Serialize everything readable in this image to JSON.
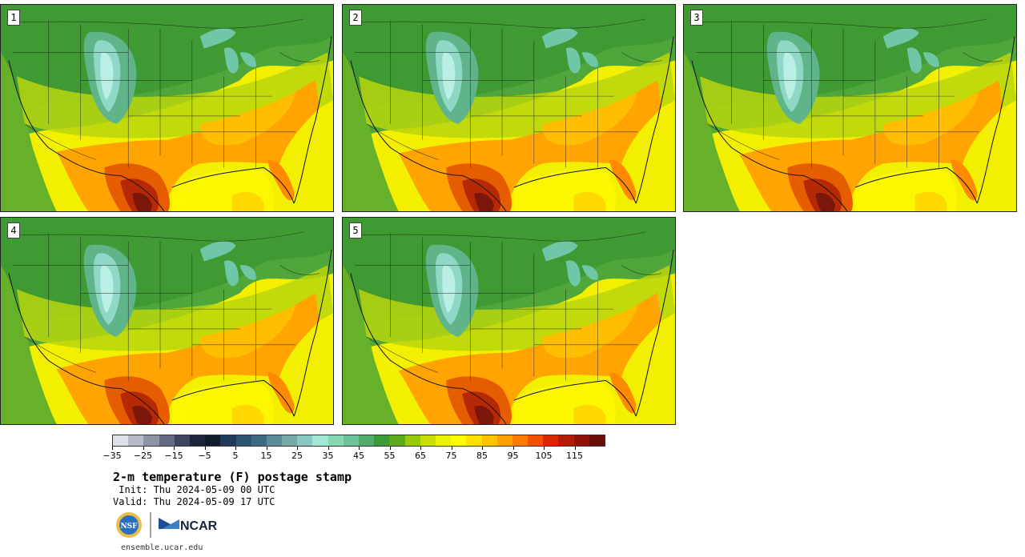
{
  "panels": [
    {
      "label": "1"
    },
    {
      "label": "2"
    },
    {
      "label": "3"
    },
    {
      "label": "4"
    },
    {
      "label": "5"
    }
  ],
  "colorbar": {
    "colors": [
      "#dfe1ea",
      "#b7bac9",
      "#8d93a8",
      "#636a85",
      "#3d4562",
      "#1d253d",
      "#0f1a2c",
      "#203b5a",
      "#2d5574",
      "#3f6b82",
      "#5a8b96",
      "#77a9a9",
      "#8ac7c2",
      "#a3e7d7",
      "#87d7b0",
      "#6cc39a",
      "#53ac6b",
      "#3d9a39",
      "#5aac1e",
      "#95c80f",
      "#c9dc0a",
      "#ecf10a",
      "#fffb00",
      "#ffe000",
      "#ffc400",
      "#ff9f00",
      "#ff7b00",
      "#f05000",
      "#d62900",
      "#b21c07",
      "#8d1208",
      "#6a0f08"
    ],
    "tick_labels": [
      "−35",
      "−25",
      "−15",
      "−5",
      "5",
      "15",
      "25",
      "35",
      "45",
      "55",
      "65",
      "75",
      "85",
      "95",
      "105",
      "115"
    ]
  },
  "title": "2-m temperature (F) postage stamp",
  "init_line": " Init: Thu 2024-05-09 00 UTC",
  "valid_line": "Valid: Thu 2024-05-09 17 UTC",
  "logo_text": "NCAR",
  "nsf_text": "NSF",
  "website": "ensemble.ucar.edu"
}
